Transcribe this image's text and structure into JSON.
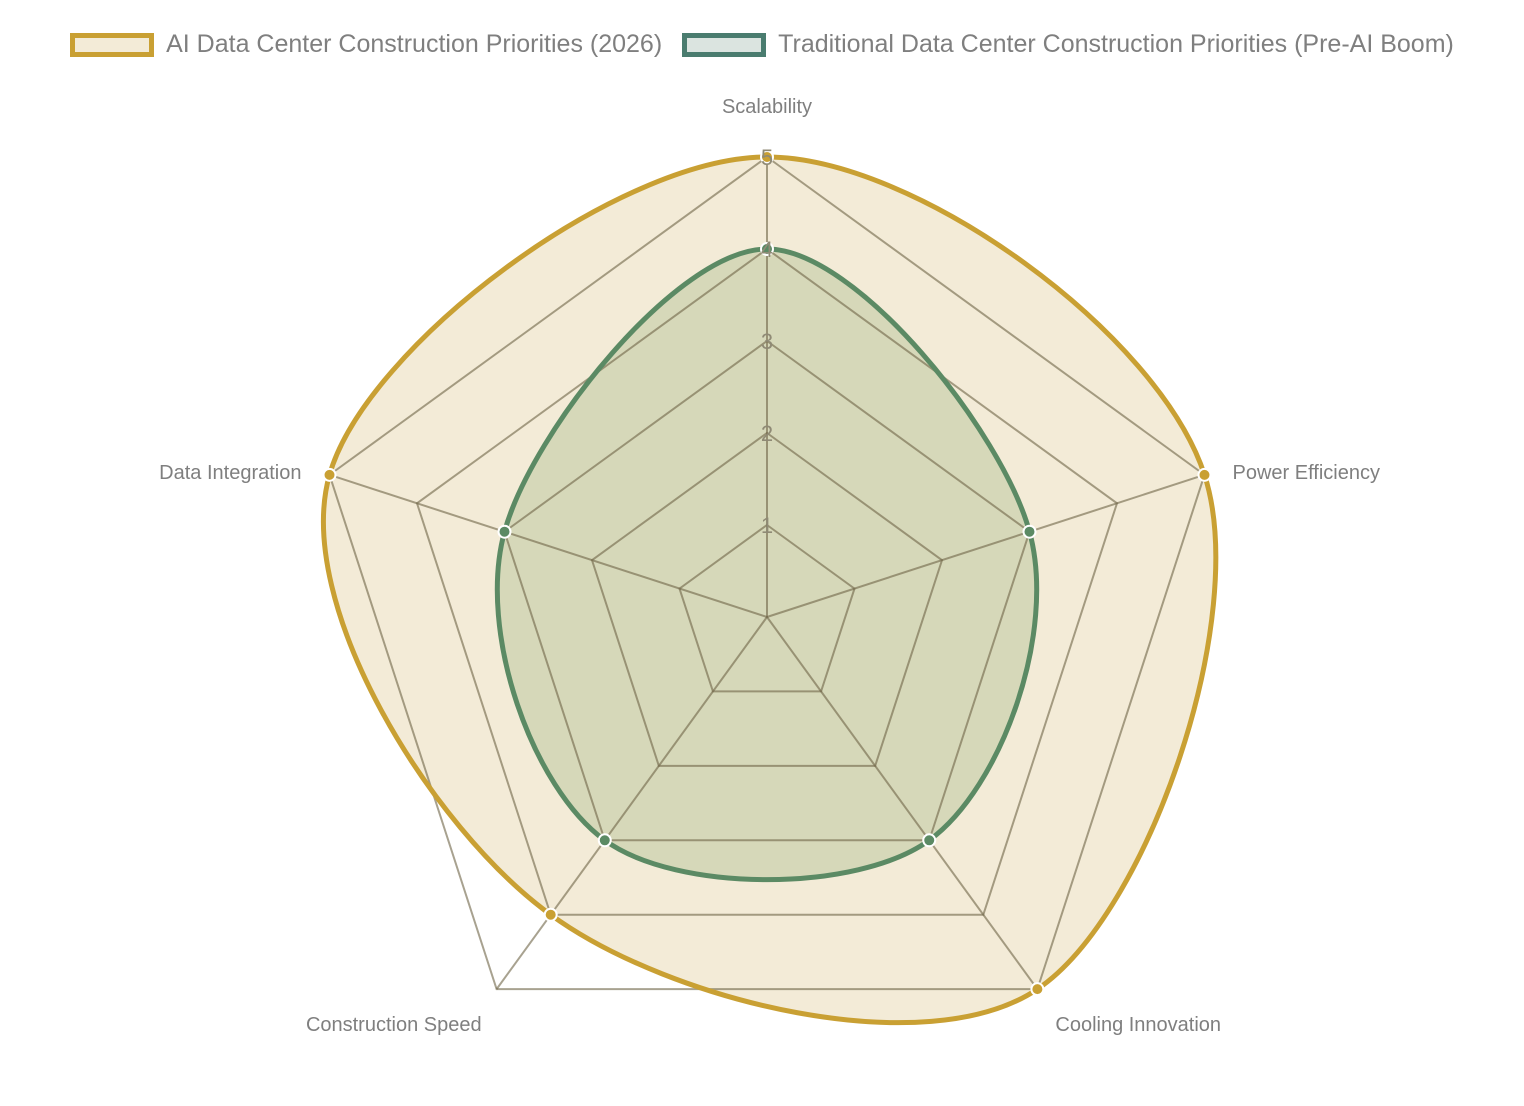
{
  "chart_data": {
    "type": "radar",
    "categories": [
      "Scalability",
      "Power Efficiency",
      "Cooling Innovation",
      "Construction Speed",
      "Data Integration"
    ],
    "series": [
      {
        "name": "AI Data Center Construction Priorities (2026)",
        "values": [
          5,
          5,
          5,
          4,
          5
        ],
        "color": "#c9a033",
        "fill": "#f3ebd7"
      },
      {
        "name": "Traditional Data Center Construction Priorities (Pre-AI Boom)",
        "values": [
          4,
          3,
          3,
          3,
          3
        ],
        "color": "#5b8a64",
        "legend_border": "#4a7c6f",
        "fill": "#dbe4e0"
      }
    ],
    "rlim": [
      0,
      5
    ],
    "ticks": [
      "1",
      "2",
      "3",
      "4",
      "5"
    ],
    "grid": true,
    "legend": "top"
  }
}
